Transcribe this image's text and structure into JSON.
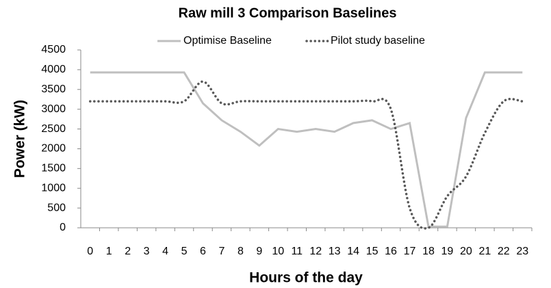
{
  "chart_data": {
    "type": "line",
    "title": "Raw mill 3 Comparison Baselines",
    "x_label": "Hours of the day",
    "y_label": "Power (kW)",
    "categories": [
      "0",
      "1",
      "2",
      "3",
      "4",
      "5",
      "6",
      "7",
      "8",
      "9",
      "10",
      "11",
      "12",
      "13",
      "14",
      "15",
      "16",
      "17",
      "18",
      "19",
      "20",
      "21",
      "22",
      "23"
    ],
    "series": [
      {
        "name": "Optimise Baseline",
        "color": "#bfbfbf",
        "style": "solid",
        "values": [
          3930,
          3930,
          3930,
          3930,
          3930,
          3930,
          3150,
          2720,
          2430,
          2080,
          2500,
          2430,
          2500,
          2430,
          2650,
          2720,
          2500,
          2650,
          30,
          30,
          2780,
          3930,
          3930,
          3930
        ]
      },
      {
        "name": "Pilot study baseline",
        "color": "#595959",
        "style": "dotted",
        "values": [
          3200,
          3200,
          3200,
          3200,
          3200,
          3200,
          3700,
          3150,
          3200,
          3200,
          3200,
          3200,
          3200,
          3200,
          3200,
          3200,
          3000,
          500,
          0,
          800,
          1300,
          2400,
          3200,
          3200
        ]
      }
    ],
    "ylim": [
      0,
      4500
    ],
    "yticks": [
      0,
      500,
      1000,
      1500,
      2000,
      2500,
      3000,
      3500,
      4000,
      4500
    ],
    "grid": false
  }
}
